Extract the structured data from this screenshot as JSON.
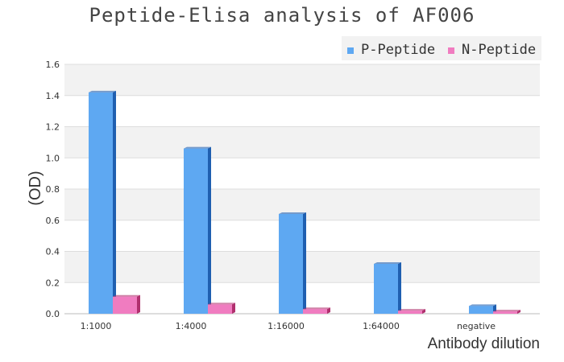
{
  "chart_data": {
    "type": "bar",
    "title": "Peptide-Elisa analysis of AF006",
    "xlabel": "Antibody dilution",
    "ylabel": "(OD)",
    "categories": [
      "1:1000",
      "1:4000",
      "1:16000",
      "1:64000",
      "negative"
    ],
    "series": [
      {
        "name": "P-Peptide",
        "values": [
          1.42,
          1.06,
          0.64,
          0.32,
          0.05
        ],
        "color": "#5ea8f2",
        "side_color": "#1f5fb0"
      },
      {
        "name": "N-Peptide",
        "values": [
          0.11,
          0.06,
          0.03,
          0.02,
          0.015
        ],
        "color": "#f07cc0",
        "side_color": "#b0306e"
      }
    ],
    "y_ticks": [
      "0.0",
      "0.2",
      "0.4",
      "0.6",
      "0.8",
      "1.0",
      "1.2",
      "1.4",
      "1.6"
    ],
    "ylim": [
      0,
      1.6
    ],
    "grid": true,
    "legend_position": "top-right"
  }
}
